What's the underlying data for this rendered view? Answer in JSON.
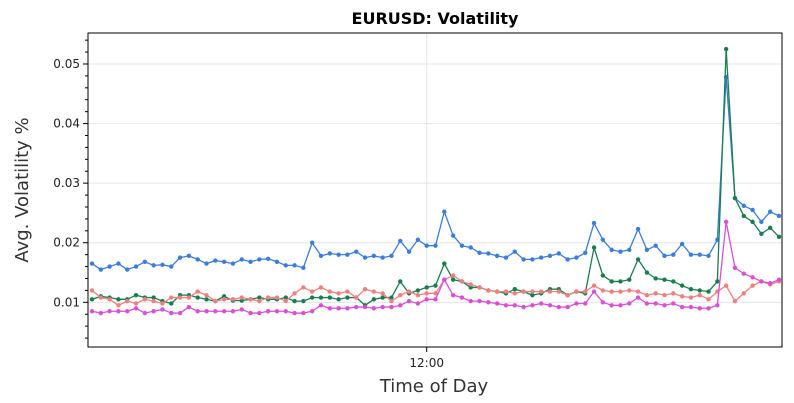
{
  "chart_data": {
    "type": "line",
    "title": "EURUSD: Volatility",
    "xlabel": "Time of Day",
    "ylabel": "Avg. Volatility %",
    "x_ticks": [
      {
        "index": 38,
        "label": "12:00"
      }
    ],
    "y_ticks": [
      0.01,
      0.02,
      0.03,
      0.04,
      0.05
    ],
    "y_tick_labels": [
      "0.01",
      "0.02",
      "0.03",
      "0.04",
      "0.05"
    ],
    "ylim": [
      0.0025,
      0.0552
    ],
    "x_count": 79,
    "grid": true,
    "legend": "none",
    "series": [
      {
        "name": "series-blue",
        "color": "#3b7ddd",
        "values": [
          0.0165,
          0.0155,
          0.016,
          0.0165,
          0.0155,
          0.016,
          0.0168,
          0.0162,
          0.0163,
          0.016,
          0.0175,
          0.0178,
          0.0172,
          0.0165,
          0.017,
          0.0168,
          0.0165,
          0.0172,
          0.0168,
          0.0172,
          0.0173,
          0.0168,
          0.0162,
          0.0162,
          0.0158,
          0.02,
          0.0178,
          0.0182,
          0.018,
          0.018,
          0.0185,
          0.0175,
          0.0178,
          0.0175,
          0.0178,
          0.0203,
          0.0185,
          0.0205,
          0.0195,
          0.0195,
          0.0252,
          0.0212,
          0.0195,
          0.0192,
          0.0183,
          0.0182,
          0.0178,
          0.0175,
          0.0185,
          0.0172,
          0.0172,
          0.0175,
          0.0178,
          0.0182,
          0.0172,
          0.0175,
          0.0183,
          0.0233,
          0.0205,
          0.0188,
          0.0185,
          0.0188,
          0.0223,
          0.0188,
          0.0195,
          0.0178,
          0.018,
          0.0198,
          0.018,
          0.018,
          0.0178,
          0.0205,
          0.0478,
          0.0275,
          0.0262,
          0.0255,
          0.0235,
          0.0252,
          0.0245
        ]
      },
      {
        "name": "series-green",
        "color": "#1b7d4f",
        "values": [
          0.0105,
          0.011,
          0.0108,
          0.0105,
          0.0105,
          0.0112,
          0.0108,
          0.0108,
          0.0102,
          0.0098,
          0.0112,
          0.0112,
          0.0108,
          0.0105,
          0.0102,
          0.011,
          0.0103,
          0.0103,
          0.0105,
          0.0108,
          0.0105,
          0.0105,
          0.0108,
          0.0102,
          0.0102,
          0.0108,
          0.0108,
          0.0108,
          0.0105,
          0.0108,
          0.0108,
          0.0095,
          0.0105,
          0.0108,
          0.0108,
          0.0135,
          0.0115,
          0.012,
          0.0125,
          0.0128,
          0.0165,
          0.0138,
          0.0135,
          0.0125,
          0.0125,
          0.012,
          0.0118,
          0.0115,
          0.0122,
          0.0118,
          0.0112,
          0.0115,
          0.0122,
          0.0122,
          0.0112,
          0.0118,
          0.0115,
          0.0192,
          0.0145,
          0.0135,
          0.0135,
          0.0138,
          0.0172,
          0.015,
          0.014,
          0.0138,
          0.0135,
          0.0128,
          0.0122,
          0.012,
          0.0118,
          0.0135,
          0.0525,
          0.0275,
          0.0245,
          0.0235,
          0.0215,
          0.0225,
          0.021
        ]
      },
      {
        "name": "series-salmon",
        "color": "#f08080",
        "values": [
          0.012,
          0.0108,
          0.0105,
          0.0095,
          0.0102,
          0.0098,
          0.0105,
          0.0102,
          0.0098,
          0.0108,
          0.0108,
          0.0108,
          0.0118,
          0.0112,
          0.0102,
          0.0105,
          0.0105,
          0.0108,
          0.0105,
          0.0102,
          0.0108,
          0.0108,
          0.0102,
          0.0115,
          0.0125,
          0.0118,
          0.0125,
          0.0118,
          0.0115,
          0.0118,
          0.0108,
          0.0122,
          0.0118,
          0.0115,
          0.0102,
          0.0112,
          0.0118,
          0.0112,
          0.0115,
          0.0115,
          0.0138,
          0.0145,
          0.0135,
          0.013,
          0.0125,
          0.012,
          0.0118,
          0.0118,
          0.0115,
          0.0118,
          0.0118,
          0.0118,
          0.0118,
          0.0118,
          0.0112,
          0.0118,
          0.0118,
          0.0128,
          0.012,
          0.0118,
          0.0118,
          0.012,
          0.0118,
          0.0112,
          0.0115,
          0.0112,
          0.0115,
          0.011,
          0.0108,
          0.0112,
          0.0105,
          0.0118,
          0.0128,
          0.0102,
          0.0115,
          0.0128,
          0.0135,
          0.013,
          0.0135
        ]
      },
      {
        "name": "series-magenta",
        "color": "#d94fd8",
        "values": [
          0.0085,
          0.0082,
          0.0085,
          0.0085,
          0.0085,
          0.009,
          0.0082,
          0.0085,
          0.0088,
          0.0082,
          0.0082,
          0.0092,
          0.0085,
          0.0085,
          0.0085,
          0.0085,
          0.0085,
          0.0088,
          0.0082,
          0.0082,
          0.0085,
          0.0085,
          0.0085,
          0.0082,
          0.0082,
          0.0085,
          0.0095,
          0.009,
          0.009,
          0.009,
          0.0092,
          0.0092,
          0.009,
          0.0092,
          0.0092,
          0.0095,
          0.0102,
          0.0098,
          0.0105,
          0.0105,
          0.0138,
          0.0112,
          0.0108,
          0.0102,
          0.0102,
          0.01,
          0.0098,
          0.0095,
          0.0095,
          0.0092,
          0.0095,
          0.0098,
          0.0095,
          0.0092,
          0.0092,
          0.0098,
          0.0098,
          0.0118,
          0.01,
          0.0095,
          0.0095,
          0.0098,
          0.0108,
          0.0098,
          0.0098,
          0.0095,
          0.0098,
          0.0092,
          0.0092,
          0.009,
          0.009,
          0.0095,
          0.0235,
          0.0158,
          0.0148,
          0.0142,
          0.0135,
          0.0132,
          0.0138
        ]
      }
    ]
  }
}
